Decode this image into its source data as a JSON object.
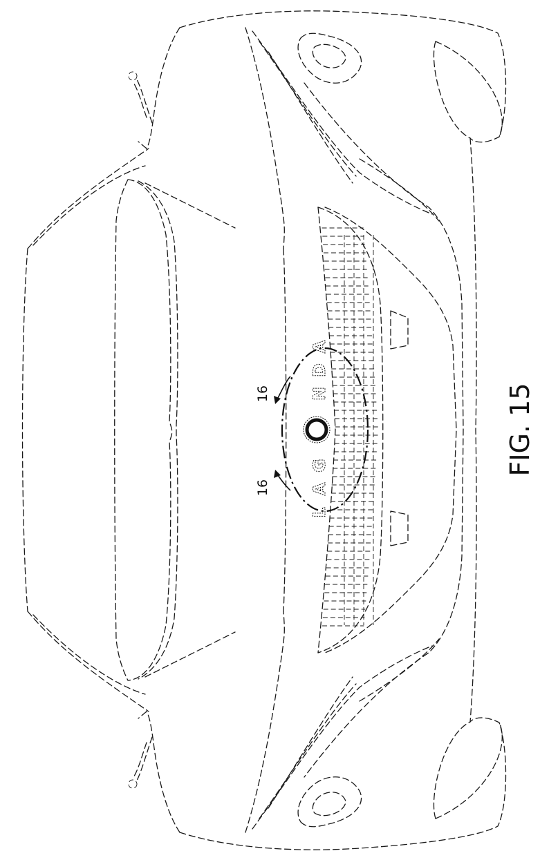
{
  "figure": {
    "caption": "FIG. 15",
    "section_label_left": "16",
    "section_label_right": "16",
    "logo_letters": [
      "L",
      "A",
      "G",
      "O",
      "N",
      "D",
      "A"
    ]
  },
  "style": {
    "line_color": "#1a1a1a",
    "background": "#ffffff"
  }
}
